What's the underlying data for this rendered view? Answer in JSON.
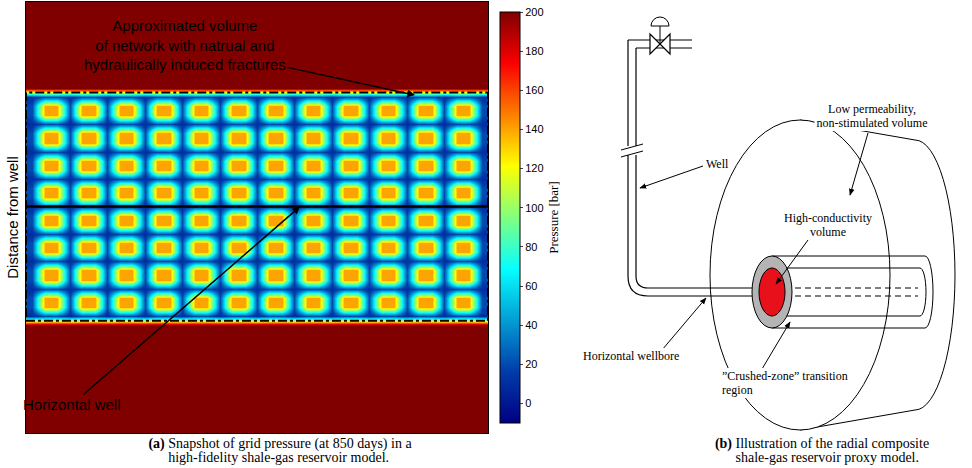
{
  "chart_data": {
    "type": "heatmap",
    "y_label": "Distance from well",
    "colorbar_title": "Pressure [bar]",
    "colorbar_range": [
      -10,
      200
    ],
    "colorbar_ticks": [
      0,
      20,
      40,
      60,
      80,
      100,
      120,
      140,
      160,
      180,
      200
    ],
    "tick_labels": false,
    "grid": false,
    "xlim": [
      -0.5,
      36.5
    ],
    "ylim": [
      -12.8,
      34.4
    ],
    "x": [
      0,
      1,
      2,
      3,
      4,
      5,
      6,
      7,
      8,
      9,
      10,
      11,
      12,
      13,
      14,
      15,
      16,
      17,
      18,
      19,
      20,
      21,
      22,
      23,
      24,
      25,
      26,
      27,
      28,
      29,
      30,
      31,
      32,
      33,
      34,
      35,
      36
    ],
    "y": [
      -13,
      -1,
      0,
      1,
      2,
      3,
      4,
      5,
      6,
      7,
      8,
      9,
      10,
      11,
      12,
      13,
      14,
      15,
      16,
      17,
      18,
      19,
      20,
      21,
      22,
      23,
      24,
      25,
      35
    ],
    "z": [
      [
        200,
        200,
        200,
        200,
        200,
        200,
        200,
        200,
        200,
        200,
        200,
        200,
        200,
        200,
        200,
        200,
        200,
        200,
        200,
        200,
        200,
        200,
        200,
        200,
        200,
        200,
        200,
        200,
        200,
        200,
        200,
        200,
        200,
        200,
        200,
        200,
        200
      ],
      [
        200,
        200,
        200,
        200,
        200,
        200,
        200,
        200,
        200,
        200,
        200,
        200,
        200,
        200,
        200,
        200,
        200,
        200,
        200,
        200,
        200,
        200,
        200,
        200,
        200,
        200,
        200,
        200,
        200,
        200,
        200,
        200,
        200,
        200,
        200,
        200,
        200
      ],
      [
        10,
        20,
        20,
        10,
        20,
        20,
        10,
        20,
        20,
        10,
        20,
        20,
        10,
        20,
        20,
        10,
        20,
        20,
        10,
        20,
        20,
        10,
        20,
        20,
        10,
        20,
        20,
        10,
        20,
        20,
        10,
        20,
        20,
        10,
        20,
        20,
        10
      ],
      [
        20,
        140,
        140,
        20,
        140,
        140,
        20,
        140,
        140,
        20,
        140,
        140,
        20,
        140,
        140,
        20,
        140,
        140,
        20,
        140,
        140,
        20,
        140,
        140,
        20,
        140,
        140,
        20,
        140,
        140,
        20,
        140,
        140,
        20,
        140,
        140,
        20
      ],
      [
        20,
        140,
        140,
        20,
        140,
        140,
        20,
        140,
        140,
        20,
        140,
        140,
        20,
        140,
        140,
        20,
        140,
        140,
        20,
        140,
        140,
        20,
        140,
        140,
        20,
        140,
        140,
        20,
        140,
        140,
        20,
        140,
        140,
        20,
        140,
        140,
        20
      ],
      [
        10,
        20,
        20,
        10,
        20,
        20,
        10,
        20,
        20,
        10,
        20,
        20,
        10,
        20,
        20,
        10,
        20,
        20,
        10,
        20,
        20,
        10,
        20,
        20,
        10,
        20,
        20,
        10,
        20,
        20,
        10,
        20,
        20,
        10,
        20,
        20,
        10
      ],
      [
        20,
        140,
        140,
        20,
        140,
        140,
        20,
        140,
        140,
        20,
        140,
        140,
        20,
        140,
        140,
        20,
        140,
        140,
        20,
        140,
        140,
        20,
        140,
        140,
        20,
        140,
        140,
        20,
        140,
        140,
        20,
        140,
        140,
        20,
        140,
        140,
        20
      ],
      [
        20,
        140,
        140,
        20,
        140,
        140,
        20,
        140,
        140,
        20,
        140,
        140,
        20,
        140,
        140,
        20,
        140,
        140,
        20,
        140,
        140,
        20,
        140,
        140,
        20,
        140,
        140,
        20,
        140,
        140,
        20,
        140,
        140,
        20,
        140,
        140,
        20
      ],
      [
        10,
        20,
        20,
        10,
        20,
        20,
        10,
        20,
        20,
        10,
        20,
        20,
        10,
        20,
        20,
        10,
        20,
        20,
        10,
        20,
        20,
        10,
        20,
        20,
        10,
        20,
        20,
        10,
        20,
        20,
        10,
        20,
        20,
        10,
        20,
        20,
        10
      ],
      [
        20,
        140,
        140,
        20,
        140,
        140,
        20,
        140,
        140,
        20,
        140,
        140,
        20,
        140,
        140,
        20,
        140,
        140,
        20,
        140,
        140,
        20,
        140,
        140,
        20,
        140,
        140,
        20,
        140,
        140,
        20,
        140,
        140,
        20,
        140,
        140,
        20
      ],
      [
        20,
        140,
        140,
        20,
        140,
        140,
        20,
        140,
        140,
        20,
        140,
        140,
        20,
        140,
        140,
        20,
        140,
        140,
        20,
        140,
        140,
        20,
        140,
        140,
        20,
        140,
        140,
        20,
        140,
        140,
        20,
        140,
        140,
        20,
        140,
        140,
        20
      ],
      [
        10,
        20,
        20,
        10,
        20,
        20,
        10,
        20,
        20,
        10,
        20,
        20,
        10,
        20,
        20,
        10,
        20,
        20,
        10,
        20,
        20,
        10,
        20,
        20,
        10,
        20,
        20,
        10,
        20,
        20,
        10,
        20,
        20,
        10,
        20,
        20,
        10
      ],
      [
        20,
        140,
        140,
        20,
        140,
        140,
        20,
        140,
        140,
        20,
        140,
        140,
        20,
        140,
        140,
        20,
        140,
        140,
        20,
        140,
        140,
        20,
        140,
        140,
        20,
        140,
        140,
        20,
        140,
        140,
        20,
        140,
        140,
        20,
        140,
        140,
        20
      ],
      [
        20,
        140,
        140,
        20,
        140,
        140,
        20,
        140,
        140,
        20,
        140,
        140,
        20,
        140,
        140,
        20,
        140,
        140,
        20,
        140,
        140,
        20,
        140,
        140,
        20,
        140,
        140,
        20,
        140,
        140,
        20,
        140,
        140,
        20,
        140,
        140,
        20
      ],
      [
        10,
        20,
        20,
        10,
        20,
        20,
        10,
        20,
        20,
        10,
        20,
        20,
        10,
        20,
        20,
        10,
        20,
        20,
        10,
        20,
        20,
        10,
        20,
        20,
        10,
        20,
        20,
        10,
        20,
        20,
        10,
        20,
        20,
        10,
        20,
        20,
        10
      ],
      [
        20,
        140,
        140,
        20,
        140,
        140,
        20,
        140,
        140,
        20,
        140,
        140,
        20,
        140,
        140,
        20,
        140,
        140,
        20,
        140,
        140,
        20,
        140,
        140,
        20,
        140,
        140,
        20,
        140,
        140,
        20,
        140,
        140,
        20,
        140,
        140,
        20
      ],
      [
        20,
        140,
        140,
        20,
        140,
        140,
        20,
        140,
        140,
        20,
        140,
        140,
        20,
        140,
        140,
        20,
        140,
        140,
        20,
        140,
        140,
        20,
        140,
        140,
        20,
        140,
        140,
        20,
        140,
        140,
        20,
        140,
        140,
        20,
        140,
        140,
        20
      ],
      [
        10,
        20,
        20,
        10,
        20,
        20,
        10,
        20,
        20,
        10,
        20,
        20,
        10,
        20,
        20,
        10,
        20,
        20,
        10,
        20,
        20,
        10,
        20,
        20,
        10,
        20,
        20,
        10,
        20,
        20,
        10,
        20,
        20,
        10,
        20,
        20,
        10
      ],
      [
        20,
        140,
        140,
        20,
        140,
        140,
        20,
        140,
        140,
        20,
        140,
        140,
        20,
        140,
        140,
        20,
        140,
        140,
        20,
        140,
        140,
        20,
        140,
        140,
        20,
        140,
        140,
        20,
        140,
        140,
        20,
        140,
        140,
        20,
        140,
        140,
        20
      ],
      [
        20,
        140,
        140,
        20,
        140,
        140,
        20,
        140,
        140,
        20,
        140,
        140,
        20,
        140,
        140,
        20,
        140,
        140,
        20,
        140,
        140,
        20,
        140,
        140,
        20,
        140,
        140,
        20,
        140,
        140,
        20,
        140,
        140,
        20,
        140,
        140,
        20
      ],
      [
        10,
        20,
        20,
        10,
        20,
        20,
        10,
        20,
        20,
        10,
        20,
        20,
        10,
        20,
        20,
        10,
        20,
        20,
        10,
        20,
        20,
        10,
        20,
        20,
        10,
        20,
        20,
        10,
        20,
        20,
        10,
        20,
        20,
        10,
        20,
        20,
        10
      ],
      [
        20,
        140,
        140,
        20,
        140,
        140,
        20,
        140,
        140,
        20,
        140,
        140,
        20,
        140,
        140,
        20,
        140,
        140,
        20,
        140,
        140,
        20,
        140,
        140,
        20,
        140,
        140,
        20,
        140,
        140,
        20,
        140,
        140,
        20,
        140,
        140,
        20
      ],
      [
        20,
        140,
        140,
        20,
        140,
        140,
        20,
        140,
        140,
        20,
        140,
        140,
        20,
        140,
        140,
        20,
        140,
        140,
        20,
        140,
        140,
        20,
        140,
        140,
        20,
        140,
        140,
        20,
        140,
        140,
        20,
        140,
        140,
        20,
        140,
        140,
        20
      ],
      [
        10,
        20,
        20,
        10,
        20,
        20,
        10,
        20,
        20,
        10,
        20,
        20,
        10,
        20,
        20,
        10,
        20,
        20,
        10,
        20,
        20,
        10,
        20,
        20,
        10,
        20,
        20,
        10,
        20,
        20,
        10,
        20,
        20,
        10,
        20,
        20,
        10
      ],
      [
        20,
        140,
        140,
        20,
        140,
        140,
        20,
        140,
        140,
        20,
        140,
        140,
        20,
        140,
        140,
        20,
        140,
        140,
        20,
        140,
        140,
        20,
        140,
        140,
        20,
        140,
        140,
        20,
        140,
        140,
        20,
        140,
        140,
        20,
        140,
        140,
        20
      ],
      [
        20,
        140,
        140,
        20,
        140,
        140,
        20,
        140,
        140,
        20,
        140,
        140,
        20,
        140,
        140,
        20,
        140,
        140,
        20,
        140,
        140,
        20,
        140,
        140,
        20,
        140,
        140,
        20,
        140,
        140,
        20,
        140,
        140,
        20,
        140,
        140,
        20
      ],
      [
        10,
        20,
        20,
        10,
        20,
        20,
        10,
        20,
        20,
        10,
        20,
        20,
        10,
        20,
        20,
        10,
        20,
        20,
        10,
        20,
        20,
        10,
        20,
        20,
        10,
        20,
        20,
        10,
        20,
        20,
        10,
        20,
        20,
        10,
        20,
        20,
        10
      ],
      [
        200,
        200,
        200,
        200,
        200,
        200,
        200,
        200,
        200,
        200,
        200,
        200,
        200,
        200,
        200,
        200,
        200,
        200,
        200,
        200,
        200,
        200,
        200,
        200,
        200,
        200,
        200,
        200,
        200,
        200,
        200,
        200,
        200,
        200,
        200,
        200,
        200
      ],
      [
        200,
        200,
        200,
        200,
        200,
        200,
        200,
        200,
        200,
        200,
        200,
        200,
        200,
        200,
        200,
        200,
        200,
        200,
        200,
        200,
        200,
        200,
        200,
        200,
        200,
        200,
        200,
        200,
        200,
        200,
        200,
        200,
        200,
        200,
        200,
        200,
        200
      ]
    ],
    "annotations": [
      {
        "text": [
          "Approximated volume",
          "of network with natrual and",
          "hydraulically induced fractures"
        ]
      },
      {
        "text": [
          "Horizontal well"
        ]
      }
    ]
  },
  "diagram": {
    "labels": [
      {
        "text": [
          "Low permeability,",
          "non-stimulated volume"
        ]
      },
      {
        "text": [
          "Well"
        ]
      },
      {
        "text": [
          "High-conductivity",
          "volume"
        ]
      },
      {
        "text": [
          "Horizontal wellbore"
        ]
      },
      {
        "text": [
          "”Crushed-zone” transition",
          "region"
        ]
      }
    ]
  },
  "captions": [
    {
      "label": "(a)",
      "text": "Snapshot of grid pressure (at 850 days) in a high-fidelity shale-gas reservoir model."
    },
    {
      "label": "(b)",
      "text": "Illustration of the radial composite shale-gas reservoir proxy model."
    }
  ]
}
